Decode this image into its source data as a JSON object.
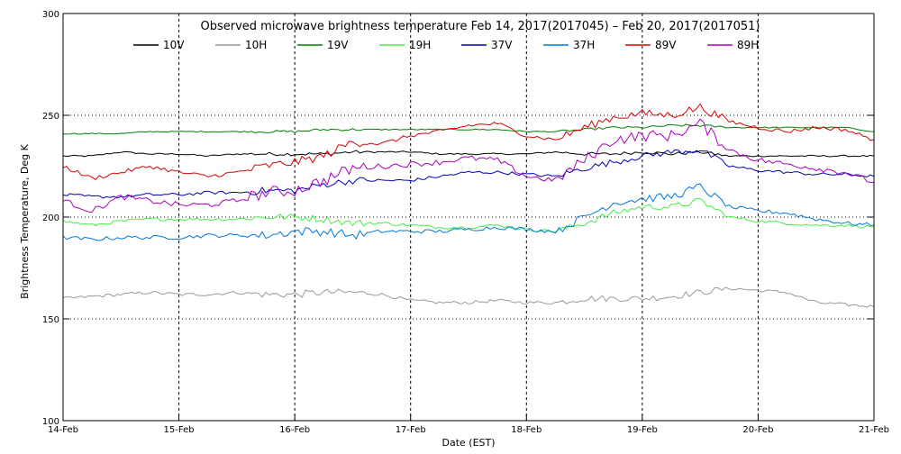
{
  "chart_data": {
    "type": "line",
    "title": "Observed microwave brightness temperature Feb 14, 2017(2017045) – Feb 20, 2017(2017051)",
    "xlabel": "Date (EST)",
    "ylabel": "Brightness Temperature, Deg K",
    "ylim": [
      100,
      300
    ],
    "yticks": [
      "100",
      "150",
      "200",
      "250",
      "300"
    ],
    "xlim": [
      0,
      7
    ],
    "xticks": [
      "14-Feb",
      "15-Feb",
      "16-Feb",
      "17-Feb",
      "18-Feb",
      "19-Feb",
      "20-Feb",
      "21-Feb"
    ],
    "grid": true,
    "legend_position": "top",
    "x": [
      0,
      0.25,
      0.5,
      0.75,
      1,
      1.25,
      1.5,
      1.75,
      2,
      2.25,
      2.5,
      2.75,
      3,
      3.25,
      3.5,
      3.75,
      4,
      4.25,
      4.5,
      4.75,
      5,
      5.25,
      5.5,
      5.75,
      6,
      6.25,
      6.5,
      6.75,
      7
    ],
    "series": [
      {
        "name": "10V",
        "color": "#000000",
        "values": [
          230,
          230,
          232,
          231,
          231,
          230,
          231,
          231,
          231,
          231,
          232,
          232,
          232,
          231,
          231,
          231,
          231,
          232,
          231,
          231,
          232,
          231,
          232,
          230,
          230,
          230,
          230,
          230,
          230
        ]
      },
      {
        "name": "10H",
        "color": "#999999",
        "values": [
          160,
          161,
          162,
          163,
          162,
          162,
          163,
          162,
          162,
          163,
          163,
          162,
          159,
          158,
          158,
          159,
          158,
          158,
          160,
          160,
          160,
          161,
          163,
          165,
          164,
          163,
          158,
          157,
          156
        ]
      },
      {
        "name": "19V",
        "color": "#008000",
        "values": [
          241,
          241,
          241,
          242,
          242,
          242,
          242,
          242,
          242,
          243,
          243,
          243,
          243,
          243,
          243,
          243,
          242,
          242,
          243,
          244,
          244,
          245,
          245,
          244,
          244,
          244,
          244,
          244,
          242
        ]
      },
      {
        "name": "19H",
        "color": "#44ee44",
        "values": [
          198,
          196,
          198,
          199,
          199,
          199,
          199,
          200,
          200,
          199,
          197,
          197,
          196,
          195,
          195,
          196,
          194,
          193,
          197,
          202,
          205,
          205,
          208,
          200,
          198,
          197,
          196,
          196,
          195
        ]
      },
      {
        "name": "37V",
        "color": "#0000bb",
        "values": [
          211,
          210,
          210,
          211,
          211,
          212,
          212,
          213,
          213,
          216,
          218,
          218,
          218,
          220,
          222,
          222,
          221,
          220,
          224,
          227,
          230,
          232,
          233,
          225,
          223,
          222,
          221,
          221,
          220
        ]
      },
      {
        "name": "37H",
        "color": "#0077dd",
        "values": [
          190,
          189,
          190,
          190,
          190,
          191,
          191,
          191,
          193,
          193,
          191,
          193,
          193,
          193,
          194,
          195,
          194,
          193,
          200,
          207,
          209,
          210,
          215,
          205,
          203,
          202,
          199,
          197,
          196
        ]
      },
      {
        "name": "89V",
        "color": "#dd0000",
        "values": [
          225,
          219,
          222,
          225,
          222,
          220,
          222,
          225,
          227,
          230,
          237,
          236,
          240,
          242,
          245,
          246,
          240,
          238,
          244,
          249,
          251,
          250,
          254,
          247,
          244,
          242,
          244,
          243,
          238
        ]
      },
      {
        "name": "89H",
        "color": "#aa00bb",
        "values": [
          208,
          203,
          210,
          208,
          206,
          206,
          208,
          212,
          213,
          218,
          224,
          225,
          226,
          227,
          229,
          228,
          220,
          218,
          228,
          238,
          240,
          240,
          246,
          233,
          228,
          226,
          224,
          222,
          217
        ]
      }
    ]
  }
}
